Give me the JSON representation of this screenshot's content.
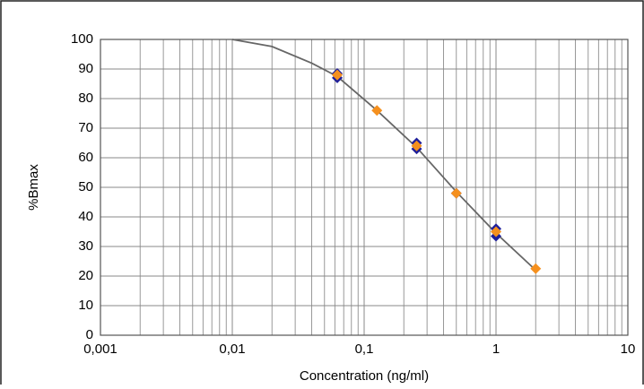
{
  "chart_data": {
    "type": "scatter",
    "xlabel": "Concentration (ng/ml)",
    "ylabel": "%Bmax",
    "xscale": "log",
    "grid": true,
    "minor_grid": true,
    "xlim": [
      0.001,
      10
    ],
    "ylim": [
      0,
      100
    ],
    "xticks": [
      {
        "value": 0.001,
        "label": "0,001"
      },
      {
        "value": 0.01,
        "label": "0,01"
      },
      {
        "value": 0.1,
        "label": "0,1"
      },
      1,
      10
    ],
    "yticks": [
      0,
      10,
      20,
      30,
      40,
      50,
      60,
      70,
      80,
      90,
      100
    ],
    "curve": {
      "color": "#666666",
      "x": [
        0.01,
        0.02,
        0.04,
        0.0625,
        0.125,
        0.25,
        0.5,
        1,
        2
      ],
      "values": [
        100,
        97.6,
        92,
        87.5,
        76,
        63.5,
        48.5,
        34.5,
        22
      ]
    },
    "series": [
      {
        "color": "#1f1f9a",
        "x": [
          0.0625,
          0.0625,
          0.25,
          0.25,
          0.5,
          1,
          1
        ],
        "values": [
          88.5,
          87,
          65,
          63,
          48,
          36,
          33.5
        ]
      },
      {
        "color": "#f5901e",
        "x": [
          0.0625,
          0.125,
          0.25,
          0.5,
          1,
          2
        ],
        "values": [
          88,
          76,
          64,
          48,
          35,
          22.5
        ]
      }
    ]
  }
}
